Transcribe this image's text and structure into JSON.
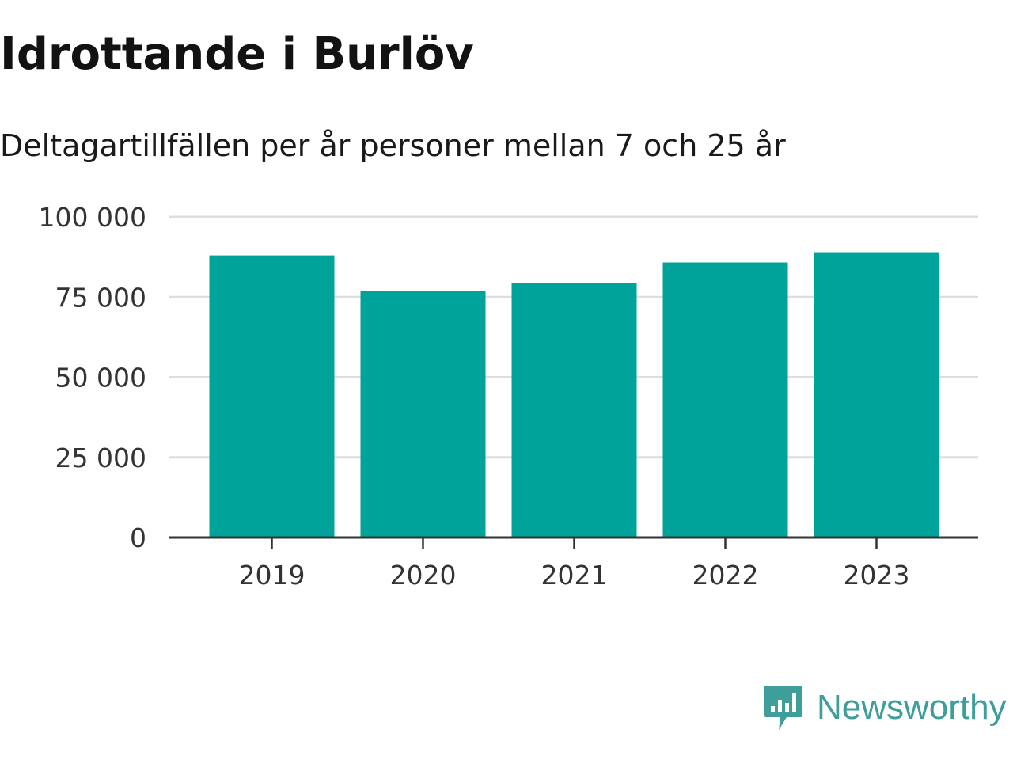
{
  "header": {
    "title": "Idrottande i Burlöv",
    "subtitle": "Deltagartillfällen per år personer mellan 7 och 25 år"
  },
  "brand": {
    "name": "Newsworthy",
    "logo_icon": "newsworthy-logo-icon",
    "color": "#3d9e9a"
  },
  "chart_data": {
    "type": "bar",
    "categories": [
      "2019",
      "2020",
      "2021",
      "2022",
      "2023"
    ],
    "values": [
      88000,
      77000,
      79500,
      85800,
      89000
    ],
    "ylim": [
      0,
      100000
    ],
    "yticks": [
      0,
      25000,
      50000,
      75000,
      100000
    ],
    "ytick_labels": [
      "0",
      "25 000",
      "50 000",
      "75 000",
      "100 000"
    ],
    "xlabel": "",
    "ylabel": "",
    "grid": true,
    "bar_color": "#00a39a",
    "grid_color": "#dddddd",
    "axis_color": "#333333"
  }
}
